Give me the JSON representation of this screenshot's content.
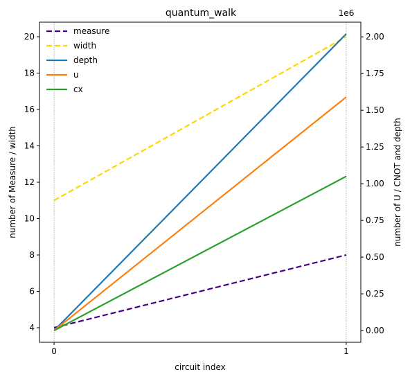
{
  "chart_data": {
    "type": "line",
    "title": "quantum_walk",
    "xlabel": "circuit index",
    "ylabel_left": "number of Measure / width",
    "ylabel_right": "number of U / CNOT and depth",
    "right_axis_offset_label": "1e6",
    "x": [
      0,
      1
    ],
    "x_ticks": [
      "0",
      "1"
    ],
    "xlim": [
      -0.05,
      1.05
    ],
    "ylim_left": [
      3.2,
      20.8
    ],
    "ylim_right": [
      -80000,
      2100000
    ],
    "yticks_left": [
      "4",
      "6",
      "8",
      "10",
      "12",
      "14",
      "16",
      "18",
      "20"
    ],
    "yticks_right": [
      "0.00",
      "0.25",
      "0.50",
      "0.75",
      "1.00",
      "1.25",
      "1.50",
      "1.75",
      "2.00"
    ],
    "legend_position": "top-left",
    "vertical_gridlines_at": [
      0,
      1
    ],
    "series": [
      {
        "name": "measure",
        "axis": "left",
        "values": [
          4,
          8
        ],
        "color": "#4b0082",
        "style": "dashed"
      },
      {
        "name": "width",
        "axis": "left",
        "values": [
          11,
          20
        ],
        "color": "#ffd700",
        "style": "dashed"
      },
      {
        "name": "depth",
        "axis": "right",
        "values": [
          0,
          2020000
        ],
        "color": "#1f77b4",
        "style": "solid"
      },
      {
        "name": "u",
        "axis": "right",
        "values": [
          0,
          1590000
        ],
        "color": "#ff7f0e",
        "style": "solid"
      },
      {
        "name": "cx",
        "axis": "right",
        "values": [
          0,
          1050000
        ],
        "color": "#2ca02c",
        "style": "solid"
      }
    ]
  }
}
